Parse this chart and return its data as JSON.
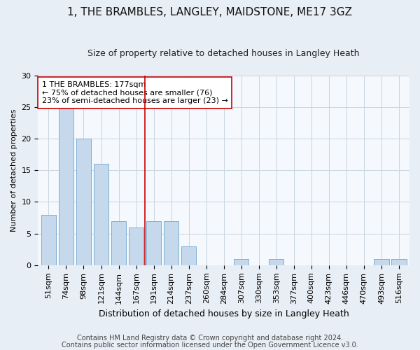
{
  "title": "1, THE BRAMBLES, LANGLEY, MAIDSTONE, ME17 3GZ",
  "subtitle": "Size of property relative to detached houses in Langley Heath",
  "xlabel": "Distribution of detached houses by size in Langley Heath",
  "ylabel": "Number of detached properties",
  "categories": [
    "51sqm",
    "74sqm",
    "98sqm",
    "121sqm",
    "144sqm",
    "167sqm",
    "191sqm",
    "214sqm",
    "237sqm",
    "260sqm",
    "284sqm",
    "307sqm",
    "330sqm",
    "353sqm",
    "377sqm",
    "400sqm",
    "423sqm",
    "446sqm",
    "470sqm",
    "493sqm",
    "516sqm"
  ],
  "values": [
    8,
    25,
    20,
    16,
    7,
    6,
    7,
    7,
    3,
    0,
    0,
    1,
    0,
    1,
    0,
    0,
    0,
    0,
    0,
    1,
    1
  ],
  "bar_color": "#c6d9ec",
  "bar_edge_color": "#7bafd4",
  "vline_color": "#cc0000",
  "annotation_text": "1 THE BRAMBLES: 177sqm\n← 75% of detached houses are smaller (76)\n23% of semi-detached houses are larger (23) →",
  "annotation_box_facecolor": "white",
  "annotation_box_edgecolor": "#cc0000",
  "ylim": [
    0,
    30
  ],
  "yticks": [
    0,
    5,
    10,
    15,
    20,
    25,
    30
  ],
  "footnote1": "Contains HM Land Registry data © Crown copyright and database right 2024.",
  "footnote2": "Contains public sector information licensed under the Open Government Licence v3.0.",
  "bg_color": "#e8eef5",
  "plot_bg_color": "#f5f8fc",
  "grid_color": "#c8d4e0",
  "title_fontsize": 11,
  "subtitle_fontsize": 9,
  "xlabel_fontsize": 9,
  "ylabel_fontsize": 8,
  "tick_fontsize": 8,
  "annot_fontsize": 8,
  "footnote_fontsize": 7
}
